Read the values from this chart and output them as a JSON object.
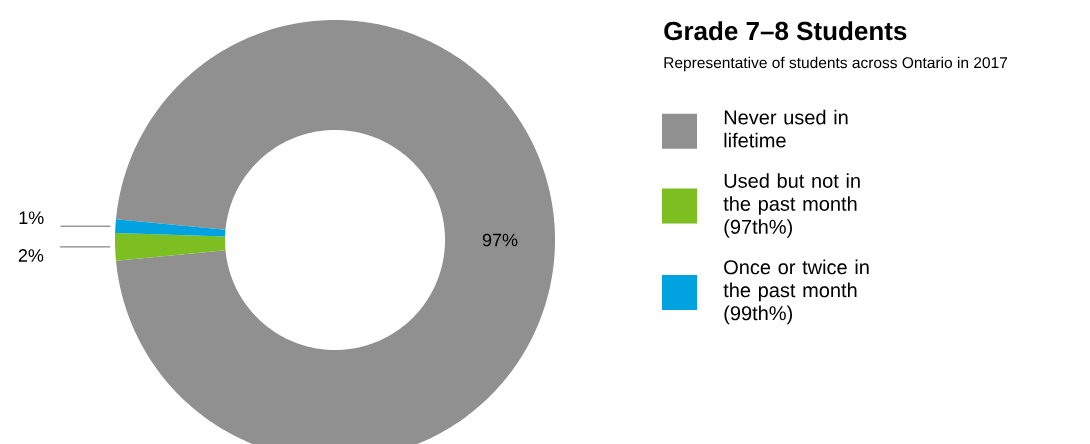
{
  "chart_data": {
    "type": "donut",
    "title": "Grade 7–8 Students",
    "subtitle": "Representative of students across Ontario in 2017",
    "categories": [
      "Never used in lifetime",
      "Used but not in the past month (97th%)",
      "Once or twice in the past month (99th%)"
    ],
    "values": [
      97,
      2,
      1
    ],
    "colors": [
      "#909090",
      "#7dbe21",
      "#00a3e0"
    ],
    "value_labels": [
      "97%",
      "2%",
      "1%"
    ],
    "legend": "right"
  }
}
